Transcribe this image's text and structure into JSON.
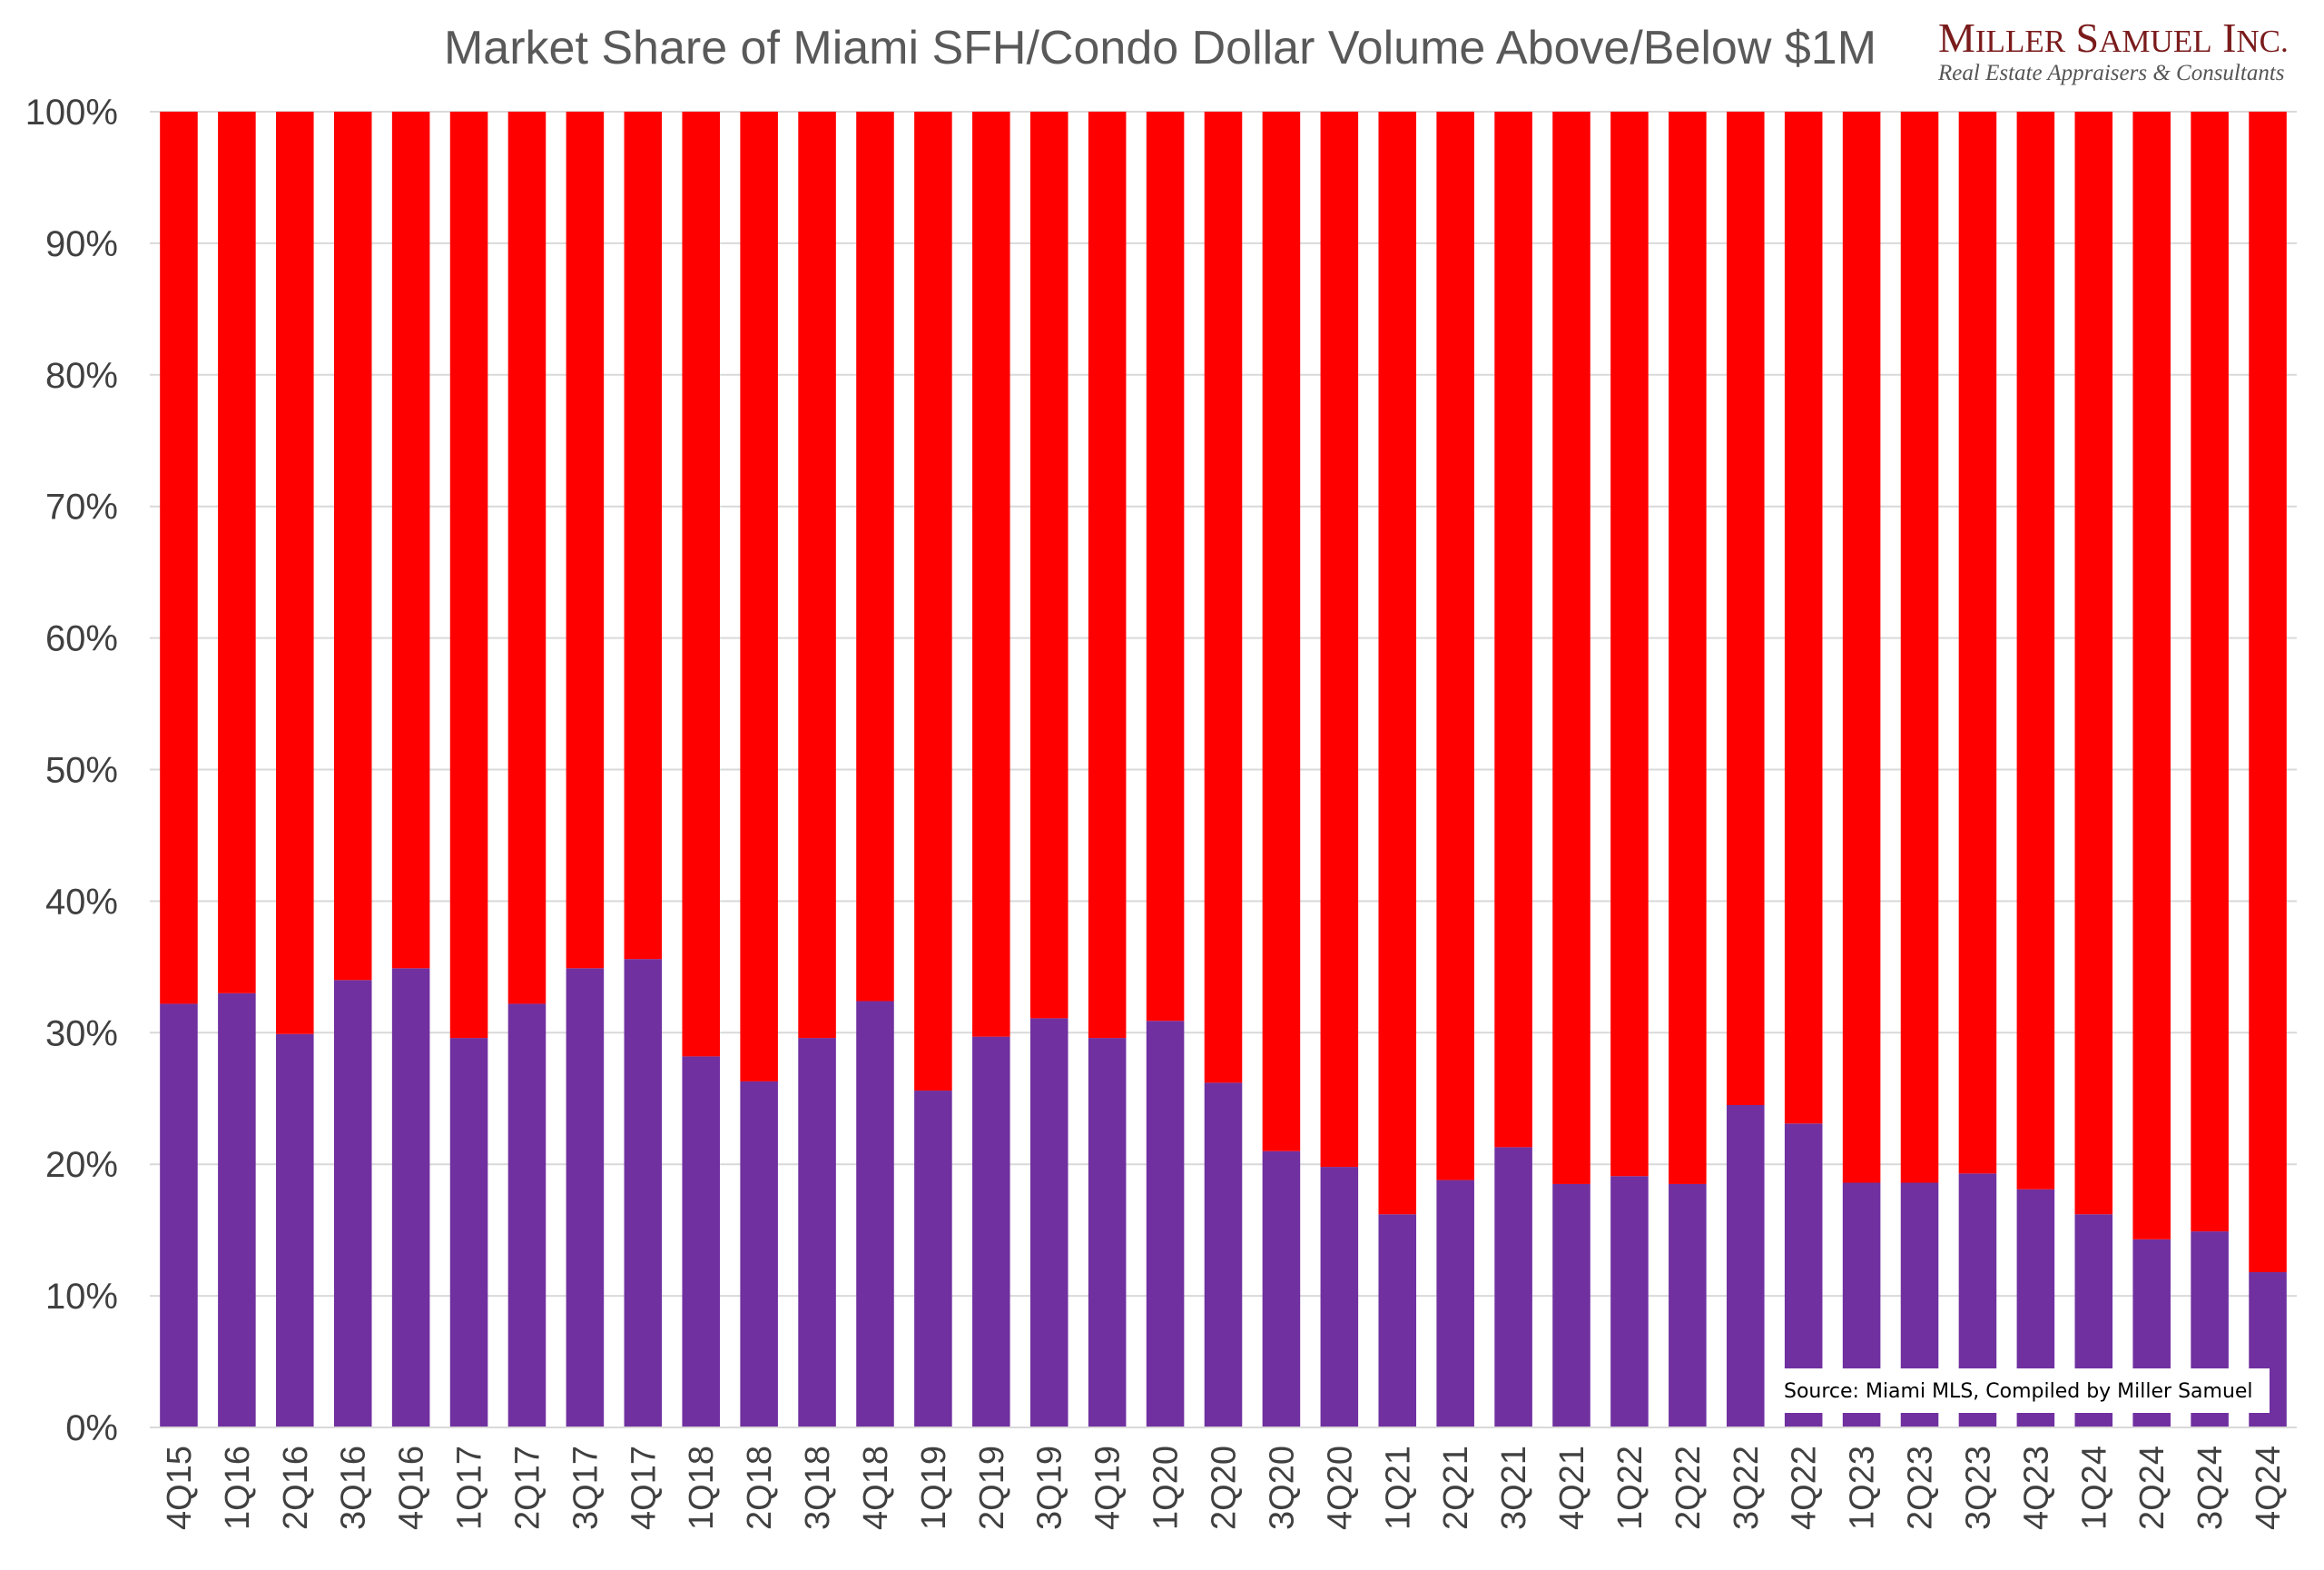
{
  "chart_data": {
    "type": "bar",
    "stacked": true,
    "title": "Market Share of Miami SFH/Condo Dollar Volume Above/Below $1M",
    "xlabel": "",
    "ylabel": "",
    "ylim": [
      0,
      100
    ],
    "yticks": [
      "0%",
      "10%",
      "20%",
      "30%",
      "40%",
      "50%",
      "60%",
      "70%",
      "80%",
      "90%",
      "100%"
    ],
    "grid": true,
    "legend": "none",
    "categories": [
      "4Q15",
      "1Q16",
      "2Q16",
      "3Q16",
      "4Q16",
      "1Q17",
      "2Q17",
      "3Q17",
      "4Q17",
      "1Q18",
      "2Q18",
      "3Q18",
      "4Q18",
      "1Q19",
      "2Q19",
      "3Q19",
      "4Q19",
      "1Q20",
      "2Q20",
      "3Q20",
      "4Q20",
      "1Q21",
      "2Q21",
      "3Q21",
      "4Q21",
      "1Q22",
      "2Q22",
      "3Q22",
      "4Q22",
      "1Q23",
      "2Q23",
      "3Q23",
      "4Q23",
      "1Q24",
      "2Q24",
      "3Q24",
      "4Q24"
    ],
    "series": [
      {
        "color": "#7030a0",
        "values": [
          32.2,
          33.0,
          29.9,
          34.0,
          34.9,
          29.6,
          32.2,
          34.9,
          35.6,
          28.2,
          26.3,
          29.6,
          32.4,
          25.6,
          29.7,
          31.1,
          29.6,
          30.9,
          26.2,
          21.0,
          19.8,
          16.2,
          18.8,
          21.3,
          18.5,
          19.1,
          18.5,
          24.5,
          23.1,
          18.6,
          18.6,
          19.3,
          18.1,
          16.2,
          14.3,
          14.9,
          11.8
        ]
      },
      {
        "color": "#ff0000",
        "values": [
          67.8,
          67.0,
          70.1,
          66.0,
          65.1,
          70.4,
          67.8,
          65.1,
          64.4,
          71.8,
          73.7,
          70.4,
          67.6,
          74.4,
          70.3,
          68.9,
          70.4,
          69.1,
          73.8,
          79.0,
          80.2,
          83.8,
          81.2,
          78.7,
          81.5,
          80.9,
          81.5,
          75.5,
          76.9,
          81.4,
          81.4,
          80.7,
          81.9,
          83.8,
          85.7,
          85.1,
          88.2
        ]
      }
    ],
    "annotations": [
      {
        "text": "Source: Miami MLS, Compiled by Miller Samuel"
      }
    ]
  },
  "logo": {
    "text": "Miller Samuel Inc.",
    "subtitle": "Real Estate Appraisers & Consultants"
  }
}
